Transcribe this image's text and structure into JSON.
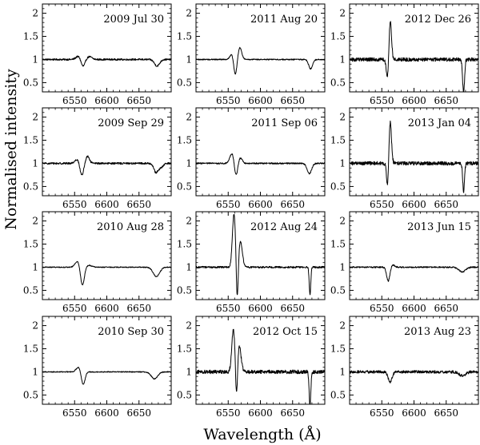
{
  "figure": {
    "ylabel": "Normalised intensity",
    "xlabel": "Wavelength (Å)"
  },
  "chart_data": {
    "type": "line",
    "layout": "4x3 grid of small-multiple spectra (column-major by date)",
    "shared_axes": {
      "xlim": [
        6500,
        6700
      ],
      "ylim": [
        0.3,
        2.2
      ],
      "x_ticks": [
        6550,
        6600,
        6650
      ],
      "x_tick_labels": [
        "6550",
        "6600",
        "6650"
      ],
      "y_ticks": [
        0.5,
        1,
        1.5,
        2
      ],
      "y_tick_labels": [
        "0.5",
        "1",
        "1.5",
        "2"
      ],
      "x_minor_step": 10,
      "y_minor_step": 0.1,
      "grid": false,
      "line_color": "#000000"
    },
    "panels": [
      {
        "label": "2009 Jul 30",
        "row": 0,
        "col": 0,
        "show_x_labels": false,
        "noise": 0.018,
        "features": [
          {
            "center": 6556,
            "amp": 0.07,
            "width": 4
          },
          {
            "center": 6563,
            "amp": -0.16,
            "width": 3
          },
          {
            "center": 6573,
            "amp": 0.06,
            "width": 4
          },
          {
            "center": 6678,
            "amp": -0.14,
            "width": 4
          }
        ]
      },
      {
        "label": "2009 Sep 29",
        "row": 1,
        "col": 0,
        "show_x_labels": false,
        "noise": 0.02,
        "features": [
          {
            "center": 6555,
            "amp": 0.1,
            "width": 4
          },
          {
            "center": 6561,
            "amp": -0.28,
            "width": 3
          },
          {
            "center": 6570,
            "amp": 0.15,
            "width": 3
          },
          {
            "center": 6676,
            "amp": -0.18,
            "width": 3
          },
          {
            "center": 6683,
            "amp": -0.1,
            "width": 4
          }
        ]
      },
      {
        "label": "2010 Aug 28",
        "row": 2,
        "col": 0,
        "show_x_labels": false,
        "noise": 0.01,
        "features": [
          {
            "center": 6555,
            "amp": 0.14,
            "width": 4
          },
          {
            "center": 6562,
            "amp": -0.42,
            "width": 3
          },
          {
            "center": 6572,
            "amp": 0.04,
            "width": 5
          },
          {
            "center": 6677,
            "amp": -0.2,
            "width": 5
          }
        ]
      },
      {
        "label": "2010 Sep 30",
        "row": 3,
        "col": 0,
        "show_x_labels": true,
        "noise": 0.01,
        "features": [
          {
            "center": 6557,
            "amp": 0.12,
            "width": 4
          },
          {
            "center": 6563,
            "amp": -0.3,
            "width": 3
          },
          {
            "center": 6674,
            "amp": -0.15,
            "width": 5
          }
        ]
      },
      {
        "label": "2011 Aug 20",
        "row": 0,
        "col": 1,
        "show_x_labels": false,
        "noise": 0.012,
        "features": [
          {
            "center": 6556,
            "amp": 0.13,
            "width": 3
          },
          {
            "center": 6561,
            "amp": -0.36,
            "width": 2.5
          },
          {
            "center": 6568,
            "amp": 0.26,
            "width": 3
          },
          {
            "center": 6678,
            "amp": -0.2,
            "width": 3
          }
        ]
      },
      {
        "label": "2011 Sep 06",
        "row": 1,
        "col": 1,
        "show_x_labels": false,
        "noise": 0.015,
        "features": [
          {
            "center": 6556,
            "amp": 0.22,
            "width": 3.5
          },
          {
            "center": 6562,
            "amp": -0.3,
            "width": 2.5
          },
          {
            "center": 6569,
            "amp": 0.12,
            "width": 3
          },
          {
            "center": 6676,
            "amp": -0.22,
            "width": 3.5
          }
        ]
      },
      {
        "label": "2012 Aug 24",
        "row": 2,
        "col": 1,
        "show_x_labels": false,
        "noise": 0.02,
        "features": [
          {
            "center": 6559,
            "amp": 1.15,
            "width": 2.5
          },
          {
            "center": 6564,
            "amp": -0.9,
            "width": 1.5
          },
          {
            "center": 6569,
            "amp": 0.55,
            "width": 3
          },
          {
            "center": 6677,
            "amp": -0.6,
            "width": 1.2
          }
        ]
      },
      {
        "label": "2012 Oct 15",
        "row": 3,
        "col": 1,
        "show_x_labels": true,
        "noise": 0.04,
        "features": [
          {
            "center": 6558,
            "amp": 0.9,
            "width": 2.5
          },
          {
            "center": 6563,
            "amp": -0.8,
            "width": 1.5
          },
          {
            "center": 6567,
            "amp": 0.55,
            "width": 3
          },
          {
            "center": 6677,
            "amp": -0.75,
            "width": 1.3
          }
        ]
      },
      {
        "label": "2012 Dec 26",
        "row": 0,
        "col": 2,
        "show_x_labels": false,
        "noise": 0.04,
        "features": [
          {
            "center": 6559,
            "amp": -0.45,
            "width": 1.8
          },
          {
            "center": 6563,
            "amp": 0.85,
            "width": 2
          },
          {
            "center": 6677,
            "amp": -0.72,
            "width": 1.5
          }
        ]
      },
      {
        "label": "2013 Jan 04",
        "row": 1,
        "col": 2,
        "show_x_labels": false,
        "noise": 0.04,
        "features": [
          {
            "center": 6559,
            "amp": -0.55,
            "width": 1.6
          },
          {
            "center": 6563,
            "amp": 0.9,
            "width": 2
          },
          {
            "center": 6677,
            "amp": -0.6,
            "width": 1.4
          }
        ]
      },
      {
        "label": "2013 Jun 15",
        "row": 2,
        "col": 2,
        "show_x_labels": false,
        "noise": 0.015,
        "features": [
          {
            "center": 6560,
            "amp": -0.3,
            "width": 2.5
          },
          {
            "center": 6567,
            "amp": 0.05,
            "width": 3
          },
          {
            "center": 6675,
            "amp": -0.1,
            "width": 5
          }
        ]
      },
      {
        "label": "2013 Aug 23",
        "row": 3,
        "col": 2,
        "show_x_labels": true,
        "noise": 0.03,
        "features": [
          {
            "center": 6563,
            "amp": -0.22,
            "width": 3
          },
          {
            "center": 6675,
            "amp": -0.08,
            "width": 5
          }
        ]
      }
    ]
  }
}
